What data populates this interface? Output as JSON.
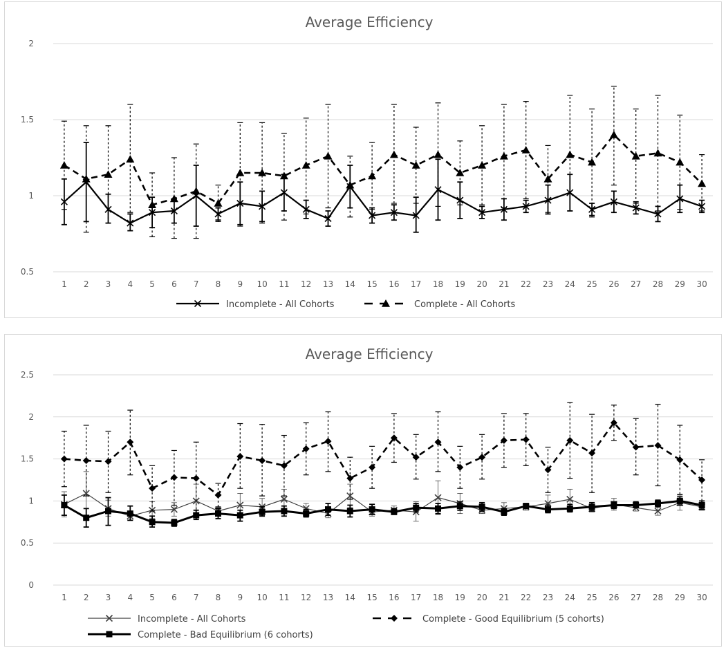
{
  "chart_data": [
    {
      "type": "line",
      "title": "Average Efficiency",
      "xlabel": "",
      "ylabel": "",
      "ylim": [
        0.5,
        2
      ],
      "yticks": [
        0.5,
        1,
        1.5,
        2
      ],
      "grid": true,
      "legend": "bottom",
      "categories": [
        "1",
        "2",
        "3",
        "4",
        "5",
        "6",
        "7",
        "8",
        "9",
        "10",
        "11",
        "12",
        "13",
        "14",
        "15",
        "16",
        "17",
        "18",
        "19",
        "20",
        "21",
        "22",
        "23",
        "24",
        "25",
        "26",
        "27",
        "28",
        "29",
        "30"
      ],
      "series": [
        {
          "name": "Incomplete - All Cohorts",
          "marker": "x",
          "line": "solid",
          "color": "#000000",
          "values": [
            0.96,
            1.09,
            0.91,
            0.82,
            0.89,
            0.9,
            1.0,
            0.88,
            0.95,
            0.93,
            1.02,
            0.91,
            0.85,
            1.06,
            0.87,
            0.89,
            0.87,
            1.04,
            0.97,
            0.89,
            0.91,
            0.93,
            0.97,
            1.02,
            0.91,
            0.96,
            0.92,
            0.88,
            0.98,
            0.93
          ],
          "err_low": [
            0.81,
            0.83,
            0.82,
            0.77,
            0.79,
            0.82,
            0.8,
            0.84,
            0.81,
            0.83,
            0.9,
            0.85,
            0.8,
            0.92,
            0.82,
            0.84,
            0.76,
            0.84,
            0.85,
            0.85,
            0.84,
            0.89,
            0.88,
            0.9,
            0.87,
            0.89,
            0.88,
            0.83,
            0.89,
            0.89
          ],
          "err_high": [
            1.11,
            1.35,
            1.01,
            0.88,
            0.99,
            0.98,
            1.2,
            0.92,
            1.09,
            1.03,
            1.14,
            0.97,
            0.9,
            1.2,
            0.92,
            0.94,
            0.99,
            1.24,
            1.09,
            0.93,
            0.98,
            0.97,
            1.07,
            1.14,
            0.95,
            1.03,
            0.96,
            0.93,
            1.07,
            0.97
          ]
        },
        {
          "name": "Complete - All Cohorts",
          "marker": "triangle",
          "line": "dashed",
          "color": "#000000",
          "values": [
            1.2,
            1.11,
            1.14,
            1.24,
            0.94,
            0.98,
            1.03,
            0.95,
            1.15,
            1.15,
            1.13,
            1.2,
            1.26,
            1.07,
            1.13,
            1.27,
            1.2,
            1.27,
            1.15,
            1.2,
            1.26,
            1.3,
            1.11,
            1.27,
            1.22,
            1.4,
            1.26,
            1.28,
            1.22,
            1.08
          ],
          "err_low": [
            0.91,
            0.76,
            0.82,
            0.89,
            0.73,
            0.72,
            0.72,
            0.83,
            0.8,
            0.82,
            0.84,
            0.88,
            0.92,
            0.86,
            0.91,
            0.95,
            0.95,
            0.93,
            0.94,
            0.94,
            0.92,
            0.98,
            0.89,
            0.9,
            0.86,
            1.07,
            0.95,
            0.9,
            0.91,
            0.9
          ],
          "err_high": [
            1.49,
            1.46,
            1.46,
            1.6,
            1.15,
            1.25,
            1.34,
            1.07,
            1.48,
            1.48,
            1.41,
            1.51,
            1.6,
            1.26,
            1.35,
            1.6,
            1.45,
            1.61,
            1.36,
            1.46,
            1.6,
            1.62,
            1.33,
            1.66,
            1.57,
            1.72,
            1.57,
            1.66,
            1.53,
            1.27
          ]
        }
      ]
    },
    {
      "type": "line",
      "title": "Average Efficiency",
      "xlabel": "",
      "ylabel": "",
      "ylim": [
        0,
        2.5
      ],
      "yticks": [
        0,
        0.5,
        1,
        1.5,
        2,
        2.5
      ],
      "grid": true,
      "legend": "bottom",
      "categories": [
        "1",
        "2",
        "3",
        "4",
        "5",
        "6",
        "7",
        "8",
        "9",
        "10",
        "11",
        "12",
        "13",
        "14",
        "15",
        "16",
        "17",
        "18",
        "19",
        "20",
        "21",
        "22",
        "23",
        "24",
        "25",
        "26",
        "27",
        "28",
        "29",
        "30"
      ],
      "series": [
        {
          "name": "Incomplete - All Cohorts",
          "marker": "x",
          "line": "thin",
          "color": "#404040",
          "values": [
            0.96,
            1.09,
            0.91,
            0.82,
            0.89,
            0.9,
            1.0,
            0.88,
            0.95,
            0.93,
            1.02,
            0.91,
            0.85,
            1.06,
            0.87,
            0.89,
            0.87,
            1.04,
            0.97,
            0.89,
            0.91,
            0.93,
            0.97,
            1.02,
            0.91,
            0.96,
            0.92,
            0.88,
            0.98,
            0.93
          ],
          "err_low": [
            0.81,
            0.83,
            0.82,
            0.77,
            0.79,
            0.82,
            0.8,
            0.84,
            0.81,
            0.83,
            0.9,
            0.85,
            0.8,
            0.92,
            0.82,
            0.84,
            0.76,
            0.84,
            0.85,
            0.85,
            0.84,
            0.89,
            0.88,
            0.9,
            0.87,
            0.89,
            0.88,
            0.83,
            0.89,
            0.89
          ],
          "err_high": [
            1.11,
            1.35,
            1.01,
            0.88,
            0.99,
            0.98,
            1.2,
            0.92,
            1.09,
            1.03,
            1.14,
            0.97,
            0.9,
            1.2,
            0.92,
            0.94,
            0.99,
            1.24,
            1.09,
            0.93,
            0.98,
            0.97,
            1.07,
            1.14,
            0.95,
            1.03,
            0.96,
            0.93,
            1.07,
            0.97
          ]
        },
        {
          "name": "Complete - Good Equilibrium (5 cohorts)",
          "marker": "diamond",
          "line": "dashed",
          "color": "#000000",
          "values": [
            1.5,
            1.48,
            1.47,
            1.7,
            1.15,
            1.28,
            1.27,
            1.07,
            1.53,
            1.48,
            1.42,
            1.62,
            1.71,
            1.27,
            1.4,
            1.75,
            1.52,
            1.7,
            1.4,
            1.52,
            1.72,
            1.73,
            1.37,
            1.72,
            1.57,
            1.93,
            1.64,
            1.66,
            1.49,
            1.25
          ],
          "err_low": [
            1.17,
            1.06,
            1.1,
            1.31,
            0.88,
            0.95,
            0.85,
            0.93,
            1.15,
            1.06,
            1.06,
            1.31,
            1.35,
            1.02,
            1.15,
            1.46,
            1.26,
            1.35,
            1.15,
            1.26,
            1.4,
            1.42,
            1.1,
            1.27,
            1.1,
            1.72,
            1.31,
            1.18,
            1.08,
            1.0
          ],
          "err_high": [
            1.83,
            1.9,
            1.83,
            2.08,
            1.42,
            1.6,
            1.7,
            1.21,
            1.92,
            1.91,
            1.78,
            1.93,
            2.06,
            1.52,
            1.65,
            2.04,
            1.79,
            2.06,
            1.65,
            1.79,
            2.04,
            2.04,
            1.64,
            2.17,
            2.03,
            2.14,
            1.98,
            2.15,
            1.9,
            1.49
          ]
        },
        {
          "name": "Complete - Bad Equilibrium (6 cohorts)",
          "marker": "square",
          "line": "solid-thick",
          "color": "#000000",
          "values": [
            0.95,
            0.8,
            0.88,
            0.85,
            0.75,
            0.74,
            0.83,
            0.85,
            0.83,
            0.87,
            0.88,
            0.85,
            0.9,
            0.88,
            0.9,
            0.87,
            0.92,
            0.91,
            0.94,
            0.93,
            0.87,
            0.94,
            0.9,
            0.91,
            0.93,
            0.95,
            0.95,
            0.97,
            1.0,
            0.95
          ],
          "err_low": [
            0.83,
            0.69,
            0.71,
            0.77,
            0.69,
            0.7,
            0.78,
            0.79,
            0.76,
            0.82,
            0.82,
            0.81,
            0.83,
            0.81,
            0.84,
            0.84,
            0.87,
            0.85,
            0.89,
            0.88,
            0.83,
            0.91,
            0.86,
            0.87,
            0.88,
            0.91,
            0.92,
            0.93,
            0.95,
            0.9
          ],
          "err_high": [
            1.07,
            0.91,
            1.04,
            0.94,
            0.82,
            0.78,
            0.89,
            0.91,
            0.89,
            0.93,
            0.94,
            0.9,
            0.97,
            0.95,
            0.96,
            0.91,
            0.97,
            0.97,
            0.99,
            0.98,
            0.91,
            0.97,
            0.95,
            0.96,
            0.98,
            0.99,
            0.99,
            1.01,
            1.05,
            1.0
          ]
        }
      ]
    }
  ]
}
